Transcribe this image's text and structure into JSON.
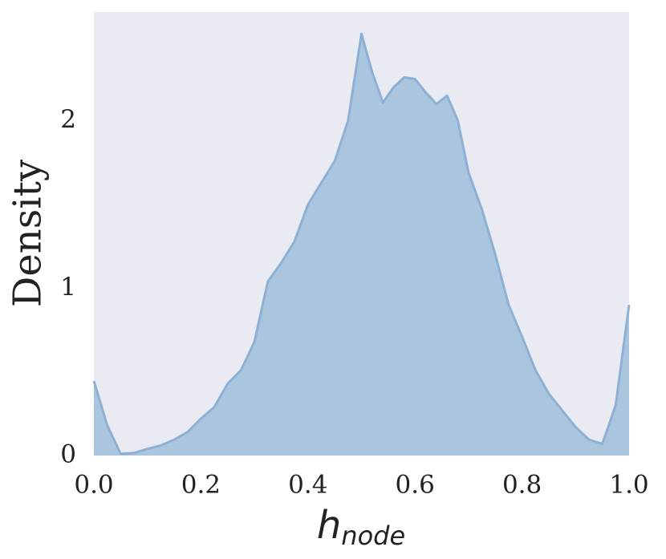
{
  "chart_data": {
    "type": "area",
    "ylabel": "Density",
    "xlabel": "h",
    "xlabel_sub": "node",
    "x": [
      0,
      0.025,
      0.05,
      0.075,
      0.1,
      0.125,
      0.15,
      0.175,
      0.2,
      0.225,
      0.25,
      0.275,
      0.3,
      0.325,
      0.35,
      0.375,
      0.4,
      0.425,
      0.45,
      0.475,
      0.5,
      0.52,
      0.54,
      0.56,
      0.58,
      0.6,
      0.62,
      0.64,
      0.66,
      0.68,
      0.7,
      0.725,
      0.75,
      0.775,
      0.8,
      0.825,
      0.85,
      0.875,
      0.9,
      0.925,
      0.95,
      0.975,
      1.0
    ],
    "values": [
      0.445,
      0.18,
      0.01,
      0.015,
      0.04,
      0.06,
      0.095,
      0.14,
      0.22,
      0.29,
      0.43,
      0.51,
      0.68,
      1.04,
      1.15,
      1.28,
      1.5,
      1.63,
      1.76,
      2.0,
      2.52,
      2.29,
      2.11,
      2.2,
      2.26,
      2.25,
      2.17,
      2.1,
      2.15,
      2.0,
      1.69,
      1.47,
      1.2,
      0.9,
      0.71,
      0.51,
      0.37,
      0.27,
      0.17,
      0.095,
      0.07,
      0.3,
      0.9
    ],
    "color": "#aac6df",
    "line_color": "#8db0d4",
    "background": "#eaeaf2",
    "xlim": [
      0,
      1
    ],
    "ylim": [
      0,
      2.65
    ],
    "xticks": [
      {
        "value": 0,
        "label": "0.0"
      },
      0.2,
      0.4,
      0.6,
      0.8,
      {
        "value": 1,
        "label": "1.0"
      }
    ],
    "yticks": [
      0,
      1,
      2
    ],
    "grid": false
  }
}
